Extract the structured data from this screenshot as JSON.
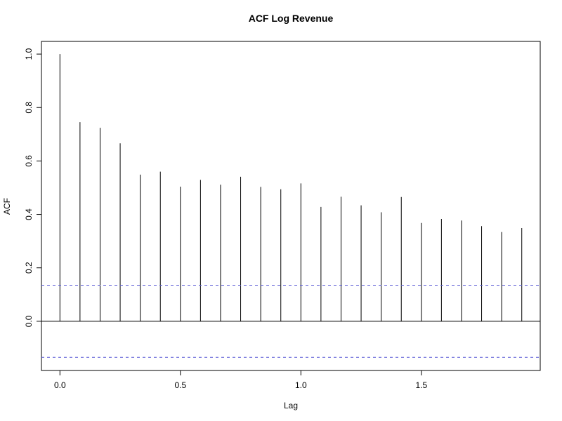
{
  "chart_data": {
    "type": "bar",
    "title": "ACF Log Revenue",
    "xlabel": "Lag",
    "ylabel": "ACF",
    "xlim": [
      -0.0767,
      1.9933
    ],
    "ylim": [
      -0.1842,
      1.0475
    ],
    "x_ticks": [
      {
        "value": 0.0,
        "label": "0.0"
      },
      {
        "value": 0.5,
        "label": "0.5"
      },
      {
        "value": 1.0,
        "label": "1.0"
      },
      {
        "value": 1.5,
        "label": "1.5"
      }
    ],
    "y_ticks": [
      {
        "value": 0.0,
        "label": "0.0"
      },
      {
        "value": 0.2,
        "label": "0.2"
      },
      {
        "value": 0.4,
        "label": "0.4"
      },
      {
        "value": 0.6,
        "label": "0.6"
      },
      {
        "value": 0.8,
        "label": "0.8"
      },
      {
        "value": 1.0,
        "label": "1.0"
      }
    ],
    "lags": [
      0.0,
      0.0833,
      0.1667,
      0.25,
      0.3333,
      0.4167,
      0.5,
      0.5833,
      0.6667,
      0.75,
      0.8333,
      0.9167,
      1.0,
      1.0833,
      1.1667,
      1.25,
      1.3333,
      1.4167,
      1.5,
      1.5833,
      1.6667,
      1.75,
      1.8333,
      1.9167
    ],
    "values": [
      1.0,
      0.745,
      0.724,
      0.666,
      0.549,
      0.56,
      0.504,
      0.529,
      0.511,
      0.541,
      0.503,
      0.494,
      0.516,
      0.428,
      0.466,
      0.434,
      0.408,
      0.465,
      0.368,
      0.383,
      0.377,
      0.356,
      0.334,
      0.349
    ],
    "confidence_bounds": [
      0.1348,
      -0.1348
    ],
    "colors": {
      "spikes": "#000000",
      "bounds": "#5b5bd6",
      "zero_line": "#000000"
    },
    "grid": false,
    "legend": "none"
  }
}
